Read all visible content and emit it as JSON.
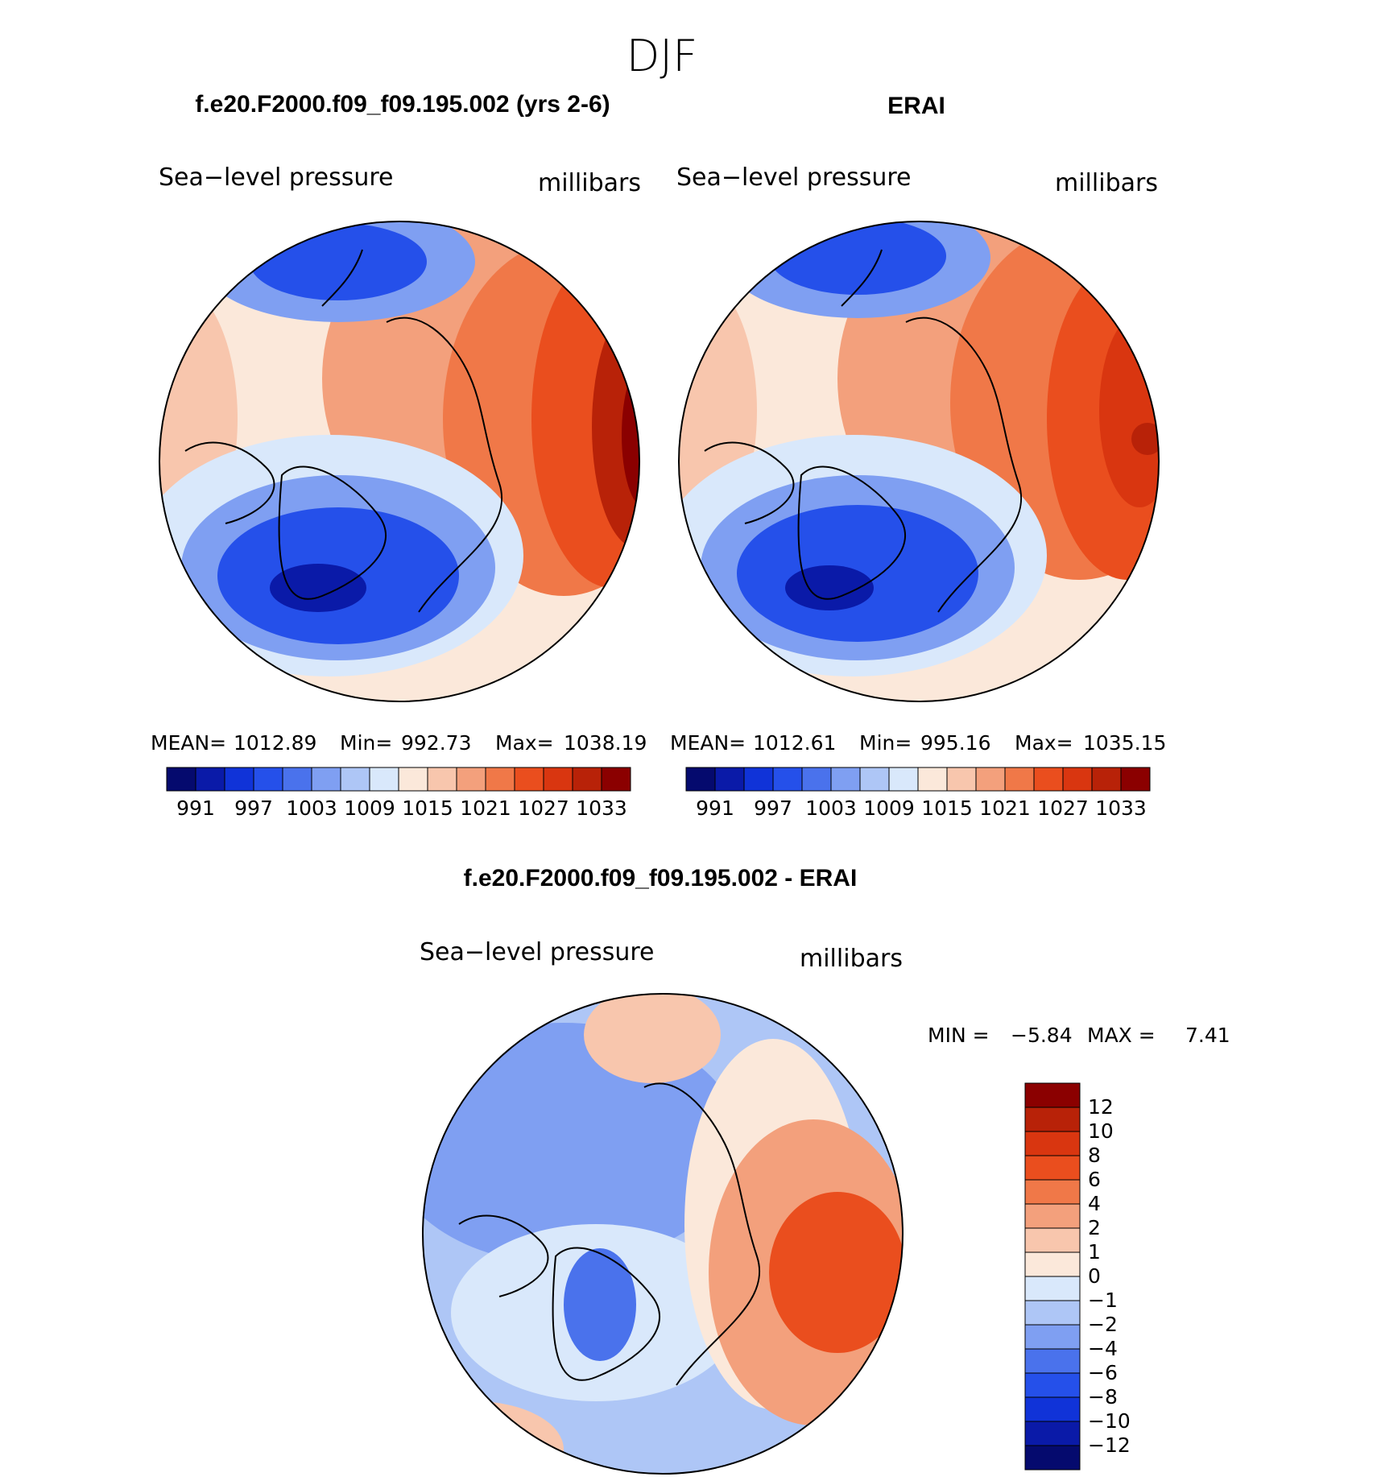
{
  "chart_data": {
    "type": "polar_contour_map",
    "title": "DJF",
    "panels": [
      {
        "id": "model",
        "title": "f.e20.F2000.f09_f09.195.002 (yrs 2-6)",
        "left_label": "Sea−level pressure",
        "right_label": "millibars",
        "stats": {
          "mean_label": "MEAN=",
          "mean": "1012.89",
          "min_label": "Min=",
          "min": "992.73",
          "max_label": "Max=",
          "max": "1038.19"
        },
        "levels": [
          "991",
          "997",
          "1003",
          "1009",
          "1015",
          "1021",
          "1027",
          "1033"
        ],
        "colors": [
          "#050a6e",
          "#0a1aa8",
          "#1033d8",
          "#2550ea",
          "#4a72ec",
          "#7f9ff2",
          "#aec6f6",
          "#d9e8fb",
          "#fbe8da",
          "#f8c6ad",
          "#f3a07c",
          "#f07848",
          "#ea4e1e",
          "#d93610",
          "#b82208",
          "#8b0000"
        ]
      },
      {
        "id": "obs",
        "title": "ERAI",
        "left_label": "Sea−level pressure",
        "right_label": "millibars",
        "stats": {
          "mean_label": "MEAN=",
          "mean": "1012.61",
          "min_label": "Min=",
          "min": "995.16",
          "max_label": "Max=",
          "max": "1035.15"
        },
        "levels": [
          "991",
          "997",
          "1003",
          "1009",
          "1015",
          "1021",
          "1027",
          "1033"
        ],
        "colors": [
          "#050a6e",
          "#0a1aa8",
          "#1033d8",
          "#2550ea",
          "#4a72ec",
          "#7f9ff2",
          "#aec6f6",
          "#d9e8fb",
          "#fbe8da",
          "#f8c6ad",
          "#f3a07c",
          "#f07848",
          "#ea4e1e",
          "#d93610",
          "#b82208",
          "#8b0000"
        ]
      },
      {
        "id": "diff",
        "title": "f.e20.F2000.f09_f09.195.002 - ERAI",
        "left_label": "Sea−level pressure",
        "right_label": "millibars",
        "stats": {
          "min_label": "MIN =",
          "min": "−5.84",
          "max_label": "MAX =",
          "max": "7.41"
        },
        "levels": [
          "12",
          "10",
          "8",
          "6",
          "4",
          "2",
          "1",
          "0",
          "−1",
          "−2",
          "−4",
          "−6",
          "−8",
          "−10",
          "−12"
        ],
        "colors": [
          "#8b0000",
          "#b82208",
          "#d93610",
          "#ea4e1e",
          "#f07848",
          "#f3a07c",
          "#f8c6ad",
          "#fbe8da",
          "#d9e8fb",
          "#aec6f6",
          "#7f9ff2",
          "#4a72ec",
          "#2550ea",
          "#1033d8",
          "#0a1aa8",
          "#050a6e"
        ]
      }
    ]
  }
}
